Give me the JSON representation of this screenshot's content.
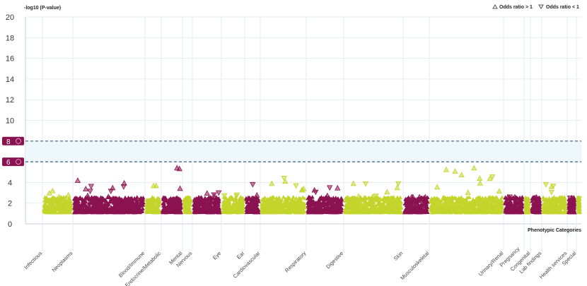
{
  "chart_data": {
    "type": "scatter",
    "title": "",
    "ylabel": "-log10 (P-value)",
    "xlabel": "Phenotypic Categories",
    "ylim": [
      0,
      20
    ],
    "yticks": [
      "0",
      "2",
      "4",
      "6",
      "8",
      "10",
      "12",
      "14",
      "16",
      "18",
      "20"
    ],
    "legend": {
      "position": "top-right",
      "entries": [
        {
          "label": "Odds ratio > 1",
          "marker": "triangle-up"
        },
        {
          "label": "Odds ratio < 1",
          "marker": "triangle-down"
        }
      ]
    },
    "thresholds": [
      {
        "label": "8",
        "value": 8
      },
      {
        "label": "6",
        "value": 6
      }
    ],
    "colors": {
      "purple": "#8b1250",
      "yellow": "#c3d52b",
      "band": "#eef7fc",
      "threshold": "#3f5f7f"
    },
    "categories": [
      {
        "name": "Infectious",
        "color": "yellow",
        "span": 43,
        "max": 3.2
      },
      {
        "name": "Neoplasms",
        "color": "purple",
        "span": 102,
        "max": 4.2
      },
      {
        "name": "Blood/Immune",
        "color": "yellow",
        "span": 23,
        "max": 3.7
      },
      {
        "name": "Endocrine/Metabolic",
        "color": "purple",
        "span": 30,
        "max": 5.4
      },
      {
        "name": "Mental",
        "color": "yellow",
        "span": 14,
        "max": 2.1
      },
      {
        "name": "Nervous",
        "color": "purple",
        "span": 41,
        "max": 3.0
      },
      {
        "name": "Eye",
        "color": "yellow",
        "span": 33,
        "max": 2.8
      },
      {
        "name": "Ear",
        "color": "purple",
        "span": 22,
        "max": 3.8
      },
      {
        "name": "Cardiovascular",
        "color": "yellow",
        "span": 65,
        "max": 4.4
      },
      {
        "name": "Respiratory",
        "color": "purple",
        "span": 53,
        "max": 3.5
      },
      {
        "name": "Digestive",
        "color": "yellow",
        "span": 84,
        "max": 3.9
      },
      {
        "name": "Skin",
        "color": "purple",
        "span": 37,
        "max": 2.6
      },
      {
        "name": "Musculoskeletal",
        "color": "yellow",
        "span": 105,
        "max": 5.4
      },
      {
        "name": "Urinary/Renal",
        "color": "purple",
        "span": 29,
        "max": 2.6
      },
      {
        "name": "Pregnancy",
        "color": "yellow",
        "span": 9,
        "max": 2.0
      },
      {
        "name": "Congenital",
        "color": "purple",
        "span": 16,
        "max": 2.5
      },
      {
        "name": "Lab findings",
        "color": "yellow",
        "span": 36,
        "max": 3.8
      },
      {
        "name": "Health services",
        "color": "purple",
        "span": 13,
        "max": 2.5
      },
      {
        "name": "Special",
        "color": "yellow",
        "span": 7,
        "max": 2.0
      }
    ]
  }
}
